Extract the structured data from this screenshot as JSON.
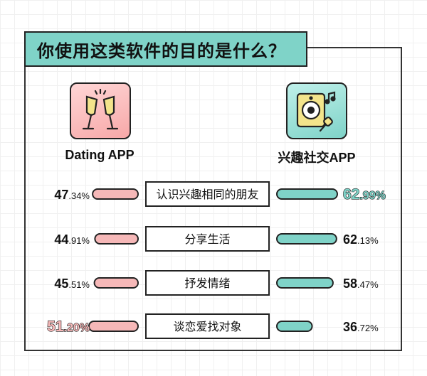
{
  "header": {
    "title": "你使用这类软件的目的是什么？"
  },
  "apps": {
    "left_label": "Dating APP",
    "right_label": "兴趣社交APP"
  },
  "colors": {
    "left_bar": "#f6b8b8",
    "right_bar": "#7fd3c8",
    "outline": "#222222"
  },
  "icons": {
    "left": "champagne-glasses-icon",
    "right": "speaker-microphone-icon"
  },
  "chart_data": {
    "type": "bar",
    "categories": [
      "认识兴趣相同的朋友",
      "分享生活",
      "抒发情绪",
      "谈恋爱找对象"
    ],
    "series": [
      {
        "name": "Dating APP",
        "values": [
          47.34,
          44.91,
          45.51,
          51.2
        ],
        "labels": [
          {
            "int": "47",
            "dec": ".34%"
          },
          {
            "int": "44",
            "dec": ".91%"
          },
          {
            "int": "45",
            "dec": ".51%"
          },
          {
            "int": "51",
            "dec": ".20%"
          }
        ],
        "highlight_index": 3
      },
      {
        "name": "兴趣社交APP",
        "values": [
          62.99,
          62.13,
          58.47,
          36.72
        ],
        "labels": [
          {
            "int": "62",
            "dec": ".99%"
          },
          {
            "int": "62",
            "dec": ".13%"
          },
          {
            "int": "58",
            "dec": ".47%"
          },
          {
            "int": "36",
            "dec": ".72%"
          }
        ],
        "highlight_index": 0
      }
    ]
  }
}
